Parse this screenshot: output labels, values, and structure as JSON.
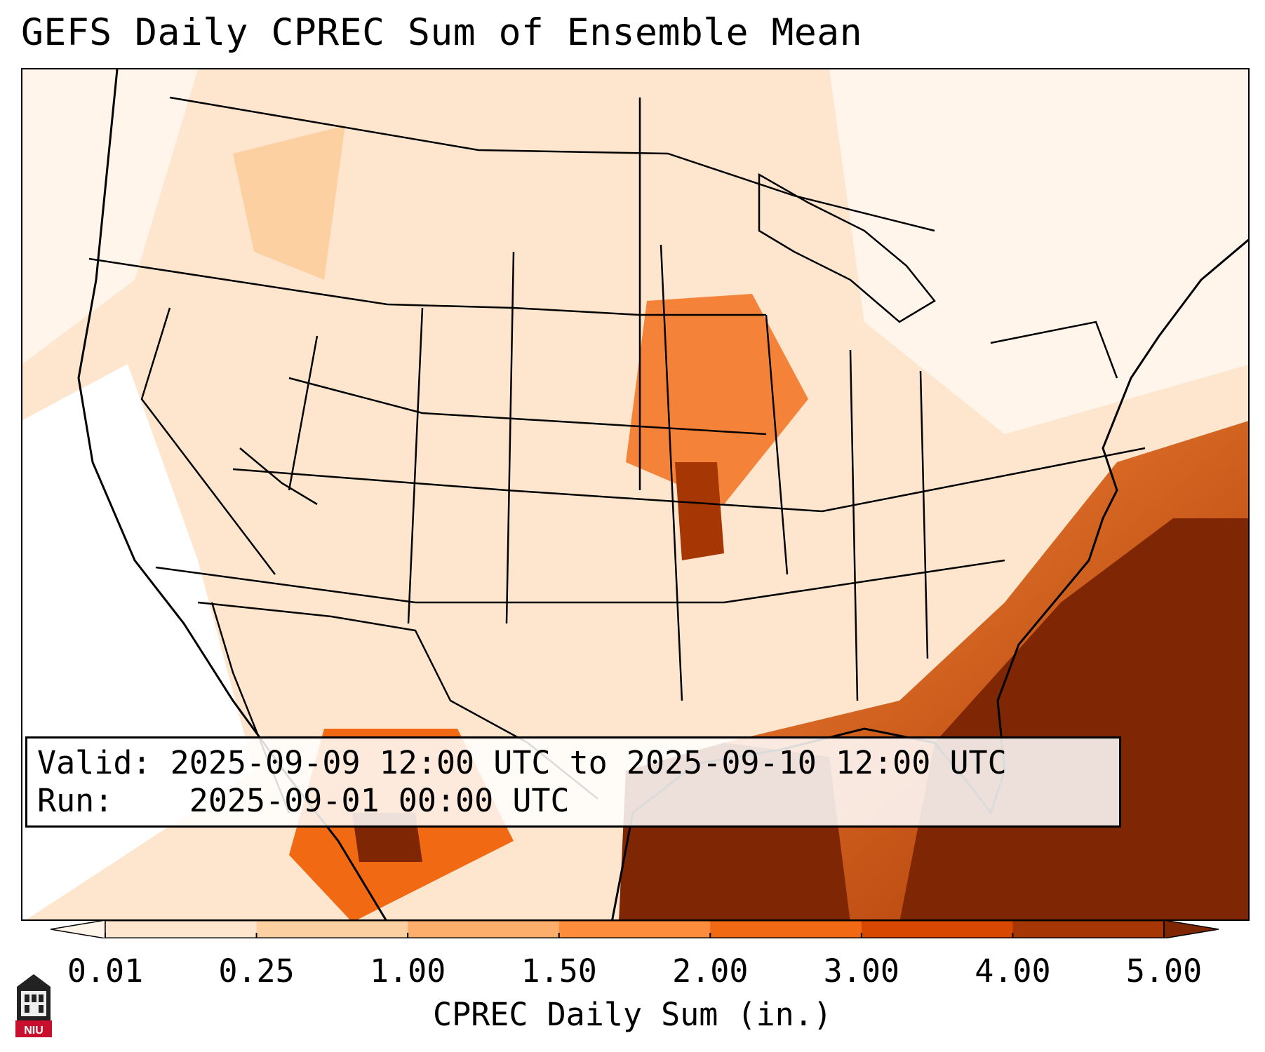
{
  "title": "GEFS Daily CPREC Sum of Ensemble Mean",
  "info": {
    "valid_label": "Valid:",
    "valid_value": "2025-09-09 12:00 UTC to 2025-09-10 12:00 UTC",
    "run_label": "Run:",
    "run_value": "2025-09-01 00:00 UTC"
  },
  "colorbar": {
    "label": "CPREC Daily Sum (in.)",
    "ticks": [
      "0.01",
      "0.25",
      "1.00",
      "1.50",
      "2.00",
      "3.00",
      "4.00",
      "5.00"
    ],
    "colors": [
      "#fff5eb",
      "#fee6ce",
      "#fdd0a2",
      "#fdae6b",
      "#fd8d3c",
      "#f16913",
      "#d94801",
      "#a63603",
      "#7f2704"
    ]
  },
  "logo": {
    "text": "NIU",
    "color": "#c8102e"
  }
}
